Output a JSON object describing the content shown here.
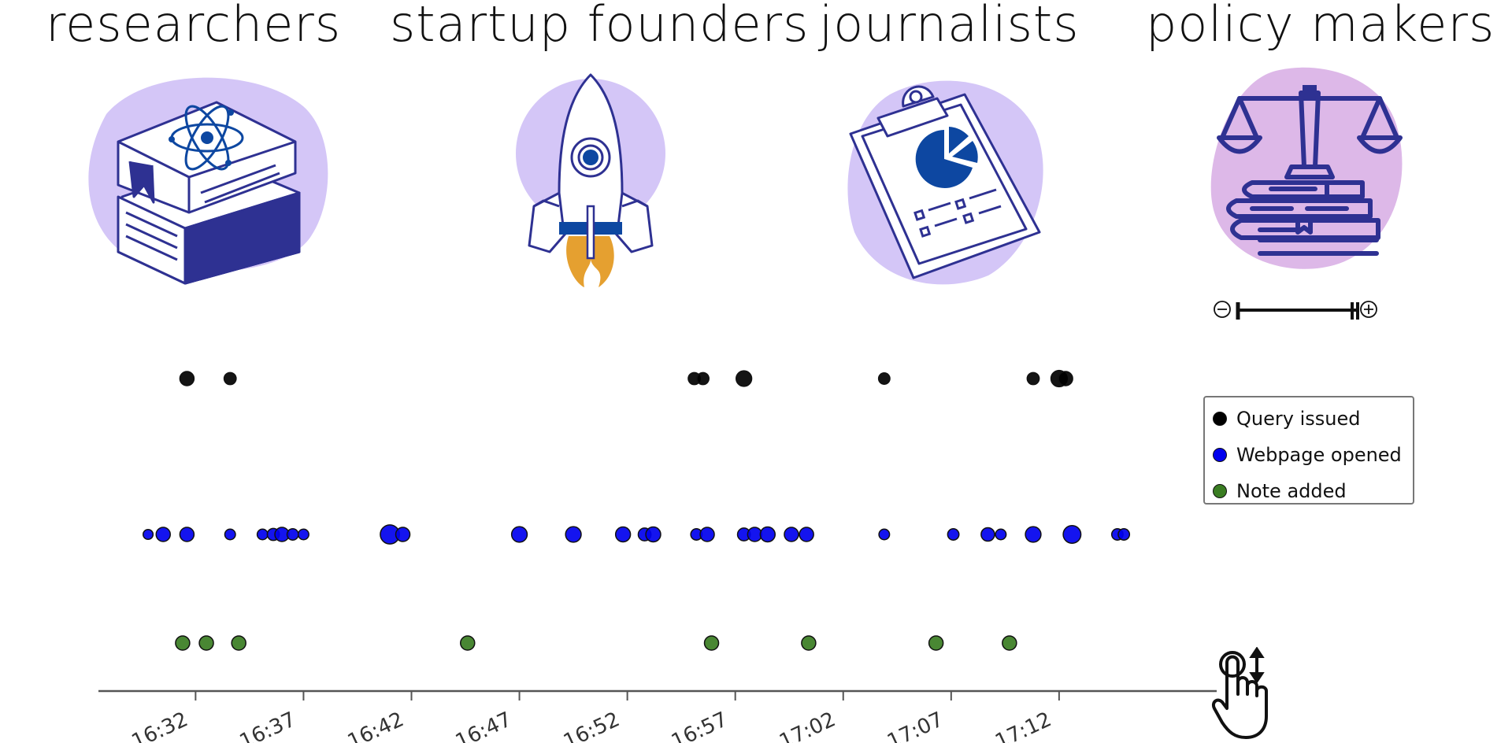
{
  "audiences": [
    {
      "label": "researchers",
      "icon": "science-books-icon"
    },
    {
      "label": "startup founders",
      "icon": "rocket-icon"
    },
    {
      "label": "journalists",
      "icon": "clipboard-chart-icon"
    },
    {
      "label": "policy makers",
      "icon": "scales-of-justice-icon"
    }
  ],
  "zoom_control": {
    "out_icon": "zoom-out-icon",
    "in_icon": "zoom-in-icon"
  },
  "legend": {
    "items": [
      {
        "label": "Query issued",
        "color": "#000000"
      },
      {
        "label": "Webpage opened",
        "color": "#0000ee"
      },
      {
        "label": "Note added",
        "color": "#3a7d22"
      }
    ]
  },
  "colors": {
    "illustration_blob": "#d4c6f7",
    "illustration_line": "#2e3192",
    "flame": "#e5a030",
    "chart_navy": "#0d47a1"
  },
  "chart_data": {
    "type": "scatter",
    "title": "",
    "xlabel": "",
    "ylabel": "",
    "x_ticks": [
      "16:32",
      "16:37",
      "16:42",
      "16:47",
      "16:52",
      "16:57",
      "17:02",
      "17:07",
      "17:12"
    ],
    "xlim": [
      "16:27.5",
      "17:19.3"
    ],
    "grid": false,
    "legend_position": "right",
    "series": [
      {
        "name": "Query issued",
        "color": "#000000",
        "points": [
          {
            "time": "16:31.6",
            "size": 1.0
          },
          {
            "time": "16:33.6",
            "size": 0.85
          },
          {
            "time": "16:55.1",
            "size": 0.85
          },
          {
            "time": "16:55.5",
            "size": 0.85
          },
          {
            "time": "16:57.4",
            "size": 1.1
          },
          {
            "time": "17:03.9",
            "size": 0.8
          },
          {
            "time": "17:10.8",
            "size": 0.85
          },
          {
            "time": "17:12.0",
            "size": 1.15
          },
          {
            "time": "17:12.3",
            "size": 1.0
          }
        ]
      },
      {
        "name": "Webpage opened",
        "color": "#0000ee",
        "points": [
          {
            "time": "16:29.8",
            "size": 0.7
          },
          {
            "time": "16:30.5",
            "size": 1.0
          },
          {
            "time": "16:31.6",
            "size": 1.0
          },
          {
            "time": "16:33.6",
            "size": 0.75
          },
          {
            "time": "16:35.1",
            "size": 0.75
          },
          {
            "time": "16:35.6",
            "size": 0.85
          },
          {
            "time": "16:36.0",
            "size": 1.0
          },
          {
            "time": "16:36.5",
            "size": 0.8
          },
          {
            "time": "16:37.0",
            "size": 0.75
          },
          {
            "time": "16:41.0",
            "size": 1.35
          },
          {
            "time": "16:41.6",
            "size": 1.0
          },
          {
            "time": "16:47.0",
            "size": 1.1
          },
          {
            "time": "16:49.5",
            "size": 1.1
          },
          {
            "time": "16:51.8",
            "size": 1.05
          },
          {
            "time": "16:52.8",
            "size": 0.9
          },
          {
            "time": "16:53.2",
            "size": 1.05
          },
          {
            "time": "16:55.2",
            "size": 0.8
          },
          {
            "time": "16:55.7",
            "size": 1.0
          },
          {
            "time": "16:57.4",
            "size": 0.9
          },
          {
            "time": "16:57.9",
            "size": 1.0
          },
          {
            "time": "16:58.5",
            "size": 1.05
          },
          {
            "time": "16:59.6",
            "size": 1.0
          },
          {
            "time": "17:00.3",
            "size": 1.0
          },
          {
            "time": "17:03.9",
            "size": 0.75
          },
          {
            "time": "17:07.1",
            "size": 0.8
          },
          {
            "time": "17:08.7",
            "size": 0.95
          },
          {
            "time": "17:09.3",
            "size": 0.75
          },
          {
            "time": "17:10.8",
            "size": 1.1
          },
          {
            "time": "17:12.6",
            "size": 1.25
          },
          {
            "time": "17:14.7",
            "size": 0.8
          },
          {
            "time": "17:15.0",
            "size": 0.8
          }
        ]
      },
      {
        "name": "Note added",
        "color": "#3a7d22",
        "points": [
          {
            "time": "16:31.4",
            "size": 1.0
          },
          {
            "time": "16:32.5",
            "size": 1.0
          },
          {
            "time": "16:34.0",
            "size": 1.0
          },
          {
            "time": "16:44.6",
            "size": 1.0
          },
          {
            "time": "16:55.9",
            "size": 1.0
          },
          {
            "time": "17:00.4",
            "size": 1.0
          },
          {
            "time": "17:06.3",
            "size": 1.0
          },
          {
            "time": "17:09.7",
            "size": 1.0
          }
        ]
      }
    ]
  }
}
